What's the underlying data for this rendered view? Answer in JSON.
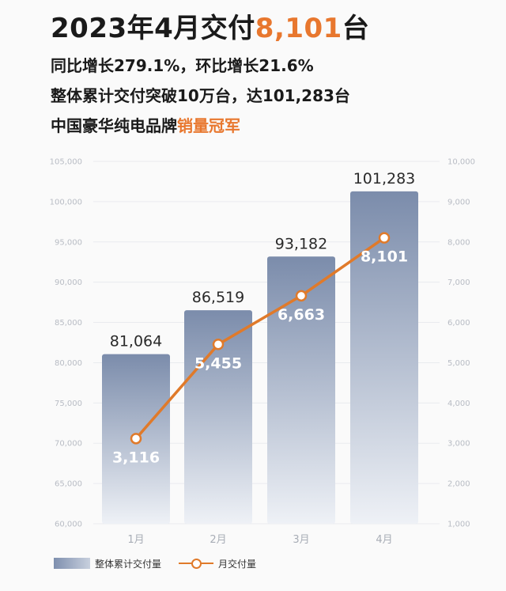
{
  "header": {
    "title_prefix": "2023年4月交付",
    "title_accent": "8,101",
    "title_suffix": "台",
    "line1": "同比增长279.1%，环比增长21.6%",
    "line2": "整体累计交付突破10万台，达101,283台",
    "line3_prefix": "中国豪华纯电品牌",
    "line3_accent": "销量冠军"
  },
  "colors": {
    "accent": "#e8772e",
    "bar_top": "#7b8cab",
    "bar_bottom": "#eef1f6",
    "line": "#e07a2a"
  },
  "chart_data": {
    "type": "bar",
    "categories": [
      "1月",
      "2月",
      "3月",
      "4月"
    ],
    "series": [
      {
        "name": "整体累计交付量",
        "type": "bar",
        "axis": "left",
        "values": [
          81064,
          86519,
          93182,
          101283
        ],
        "labels": [
          "81,064",
          "86,519",
          "93,182",
          "101,283"
        ]
      },
      {
        "name": "月交付量",
        "type": "line",
        "axis": "right",
        "values": [
          3116,
          5455,
          6663,
          8101
        ],
        "labels": [
          "3,116",
          "5,455",
          "6,663",
          "8,101"
        ]
      }
    ],
    "y_left": {
      "min": 60000,
      "max": 105000,
      "ticks": [
        "60,000",
        "65,000",
        "70,000",
        "75,000",
        "80,000",
        "85,000",
        "90,000",
        "95,000",
        "100,000",
        "105,000"
      ]
    },
    "y_right": {
      "min": 1000,
      "max": 10000,
      "ticks": [
        "1,000",
        "2,000",
        "3,000",
        "4,000",
        "5,000",
        "6,000",
        "7,000",
        "8,000",
        "9,000",
        "10,000"
      ]
    },
    "grid": true,
    "legend": "bottom-left"
  },
  "legend": {
    "bar_label": "整体累计交付量",
    "line_label": "月交付量"
  }
}
